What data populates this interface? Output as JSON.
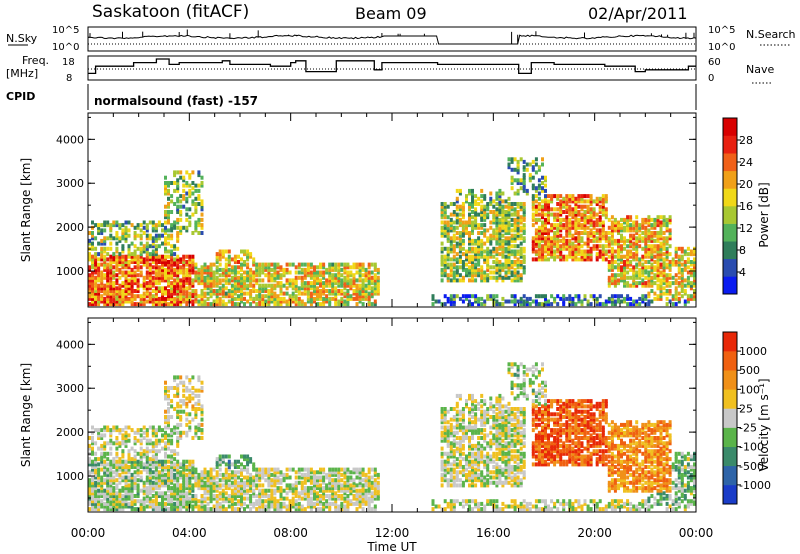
{
  "header": {
    "station": "Saskatoon (fitACF)",
    "beam": "Beam 09",
    "date": "02/Apr/2011"
  },
  "top_panels": {
    "nsky_label": "N.Sky",
    "nsearch_label": "N.Search",
    "freq_label_1": "Freq.",
    "freq_label_2": "[MHz]",
    "nave_label": "Nave",
    "cpid_label": "CPID",
    "cpid_value": "normalsound (fast) -157",
    "noise_ticks": [
      "10^5",
      "10^0"
    ],
    "freq_ticks": [
      "18",
      "8"
    ],
    "nave_ticks": [
      "60",
      "0"
    ]
  },
  "chart_data": [
    {
      "type": "heatmap",
      "name": "power",
      "xlabel": "",
      "ylabel": "Slant Range [km]",
      "xlim": [
        0,
        24
      ],
      "ylim": [
        180,
        4600
      ],
      "x_ticks": [
        "00:00",
        "04:00",
        "08:00",
        "12:00",
        "16:00",
        "20:00",
        "00:00"
      ],
      "y_ticks": [
        1000,
        2000,
        3000,
        4000
      ],
      "colorbar": {
        "label": "Power [dB]",
        "ticks": [
          "28",
          "24",
          "20",
          "16",
          "12",
          "8",
          "4"
        ],
        "colors": [
          "#0a1cf0",
          "#2a4cb0",
          "#2f7d5a",
          "#53b25a",
          "#a8c832",
          "#f0d818",
          "#f0a018",
          "#f06018",
          "#e82010",
          "#d80000"
        ]
      }
    },
    {
      "type": "heatmap",
      "name": "velocity",
      "xlabel": "Time UT",
      "ylabel": "Slant Range [km]",
      "xlim": [
        0,
        24
      ],
      "ylim": [
        180,
        4600
      ],
      "x_ticks": [
        "00:00",
        "04:00",
        "08:00",
        "12:00",
        "16:00",
        "20:00",
        "00:00"
      ],
      "y_ticks": [
        1000,
        2000,
        3000,
        4000
      ],
      "colorbar": {
        "label": "Velocity [m s⁻¹]",
        "ticks": [
          "1000",
          "500",
          "100",
          "25",
          "-25",
          "-100",
          "-500",
          "-1000"
        ],
        "colors": [
          "#1a3cc8",
          "#2e64a8",
          "#3a8a6a",
          "#5ab44a",
          "#c8c8c8",
          "#f0c020",
          "#f09018",
          "#f06010",
          "#e82808"
        ]
      }
    }
  ]
}
